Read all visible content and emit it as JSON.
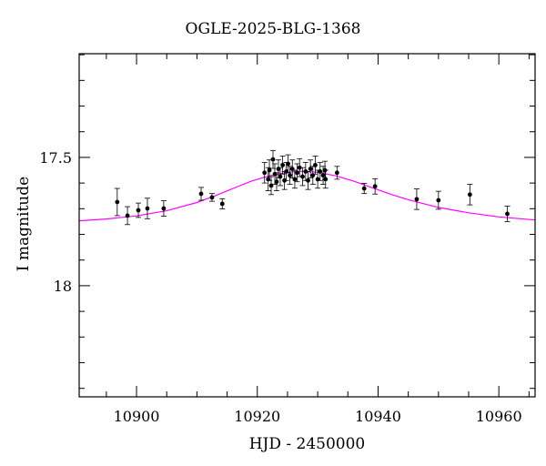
{
  "chart_data": {
    "type": "scatter",
    "title": "OGLE-2025-BLG-1368",
    "xlabel": "HJD - 2450000",
    "ylabel": "I magnitude",
    "xlim": [
      10890.5,
      10966.0
    ],
    "ylim": [
      18.433,
      17.096
    ],
    "y_inverted": true,
    "grid": false,
    "legend": null,
    "x_ticks": [
      10900,
      10920,
      10940,
      10960
    ],
    "x_tick_labels": [
      "10900",
      "10920",
      "10940",
      "10960"
    ],
    "x_minor_step": 5,
    "y_ticks": [
      17.5,
      18.0
    ],
    "y_tick_labels": [
      "17.5",
      "18"
    ],
    "y_minor_step": 0.1,
    "colors": {
      "points": "#000000",
      "model": "#ff00ff",
      "frame": "#000000"
    },
    "series": [
      {
        "name": "OGLE I-band photometry",
        "kind": "points_with_errorbars",
        "points": [
          {
            "x": 10896.8,
            "y": 17.674,
            "err": 0.053
          },
          {
            "x": 10898.5,
            "y": 17.727,
            "err": 0.035
          },
          {
            "x": 10900.3,
            "y": 17.706,
            "err": 0.028
          },
          {
            "x": 10901.8,
            "y": 17.699,
            "err": 0.04
          },
          {
            "x": 10904.5,
            "y": 17.699,
            "err": 0.03
          },
          {
            "x": 10910.7,
            "y": 17.642,
            "err": 0.025
          },
          {
            "x": 10912.5,
            "y": 17.656,
            "err": 0.015
          },
          {
            "x": 10914.2,
            "y": 17.681,
            "err": 0.02
          },
          {
            "x": 10921.2,
            "y": 17.56,
            "err": 0.04
          },
          {
            "x": 10921.8,
            "y": 17.585,
            "err": 0.045
          },
          {
            "x": 10922.0,
            "y": 17.55,
            "err": 0.04
          },
          {
            "x": 10922.3,
            "y": 17.61,
            "err": 0.035
          },
          {
            "x": 10922.6,
            "y": 17.508,
            "err": 0.035
          },
          {
            "x": 10922.9,
            "y": 17.565,
            "err": 0.04
          },
          {
            "x": 10923.2,
            "y": 17.595,
            "err": 0.035
          },
          {
            "x": 10923.5,
            "y": 17.545,
            "err": 0.035
          },
          {
            "x": 10923.8,
            "y": 17.575,
            "err": 0.035
          },
          {
            "x": 10924.2,
            "y": 17.53,
            "err": 0.035
          },
          {
            "x": 10924.5,
            "y": 17.59,
            "err": 0.035
          },
          {
            "x": 10924.8,
            "y": 17.555,
            "err": 0.035
          },
          {
            "x": 10925.1,
            "y": 17.525,
            "err": 0.035
          },
          {
            "x": 10925.4,
            "y": 17.57,
            "err": 0.035
          },
          {
            "x": 10925.8,
            "y": 17.545,
            "err": 0.035
          },
          {
            "x": 10926.2,
            "y": 17.585,
            "err": 0.035
          },
          {
            "x": 10926.6,
            "y": 17.56,
            "err": 0.035
          },
          {
            "x": 10927.0,
            "y": 17.54,
            "err": 0.035
          },
          {
            "x": 10927.5,
            "y": 17.575,
            "err": 0.035
          },
          {
            "x": 10928.0,
            "y": 17.555,
            "err": 0.035
          },
          {
            "x": 10928.4,
            "y": 17.59,
            "err": 0.035
          },
          {
            "x": 10928.8,
            "y": 17.545,
            "err": 0.035
          },
          {
            "x": 10929.2,
            "y": 17.57,
            "err": 0.035
          },
          {
            "x": 10929.6,
            "y": 17.53,
            "err": 0.035
          },
          {
            "x": 10930.0,
            "y": 17.585,
            "err": 0.035
          },
          {
            "x": 10930.4,
            "y": 17.555,
            "err": 0.035
          },
          {
            "x": 10930.9,
            "y": 17.57,
            "err": 0.035
          },
          {
            "x": 10931.2,
            "y": 17.55,
            "err": 0.035
          },
          {
            "x": 10931.3,
            "y": 17.585,
            "err": 0.035
          },
          {
            "x": 10933.2,
            "y": 17.56,
            "err": 0.025
          },
          {
            "x": 10937.7,
            "y": 17.621,
            "err": 0.02
          },
          {
            "x": 10939.5,
            "y": 17.613,
            "err": 0.03
          },
          {
            "x": 10946.4,
            "y": 17.663,
            "err": 0.04
          },
          {
            "x": 10950.0,
            "y": 17.667,
            "err": 0.035
          },
          {
            "x": 10955.2,
            "y": 17.645,
            "err": 0.04
          },
          {
            "x": 10961.4,
            "y": 17.72,
            "err": 0.03
          }
        ]
      },
      {
        "name": "Microlensing model",
        "kind": "line",
        "color": "#ff00ff",
        "points": [
          {
            "x": 10890.5,
            "y": 17.747
          },
          {
            "x": 10895.0,
            "y": 17.74
          },
          {
            "x": 10900.0,
            "y": 17.728
          },
          {
            "x": 10905.0,
            "y": 17.708
          },
          {
            "x": 10910.0,
            "y": 17.676
          },
          {
            "x": 10913.0,
            "y": 17.65
          },
          {
            "x": 10916.0,
            "y": 17.621
          },
          {
            "x": 10919.0,
            "y": 17.593
          },
          {
            "x": 10922.0,
            "y": 17.572
          },
          {
            "x": 10925.0,
            "y": 17.558
          },
          {
            "x": 10927.4,
            "y": 17.554
          },
          {
            "x": 10930.0,
            "y": 17.558
          },
          {
            "x": 10933.0,
            "y": 17.572
          },
          {
            "x": 10936.0,
            "y": 17.593
          },
          {
            "x": 10939.0,
            "y": 17.618
          },
          {
            "x": 10942.0,
            "y": 17.643
          },
          {
            "x": 10945.0,
            "y": 17.665
          },
          {
            "x": 10950.0,
            "y": 17.695
          },
          {
            "x": 10955.0,
            "y": 17.716
          },
          {
            "x": 10960.0,
            "y": 17.732
          },
          {
            "x": 10966.0,
            "y": 17.744
          }
        ]
      }
    ]
  }
}
